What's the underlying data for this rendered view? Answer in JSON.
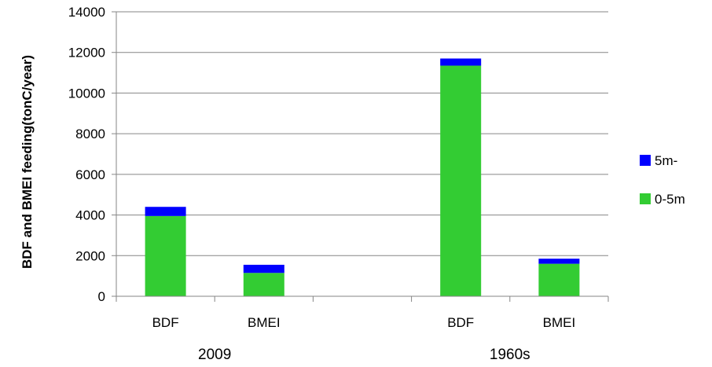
{
  "chart_data": {
    "type": "bar",
    "stacked": true,
    "groups": [
      {
        "label": "2009",
        "categories": [
          "BDF",
          "BMEI"
        ]
      },
      {
        "label": "1960s",
        "categories": [
          "BDF",
          "BMEI"
        ]
      }
    ],
    "categories": [
      "BDF",
      "BMEI",
      "BDF",
      "BMEI"
    ],
    "series": [
      {
        "name": "0-5m",
        "color": "#33CC33",
        "values": [
          3950,
          1150,
          11350,
          1600
        ]
      },
      {
        "name": "5m-",
        "color": "#0000FF",
        "values": [
          450,
          400,
          350,
          250
        ]
      }
    ],
    "title": "",
    "xlabel": "",
    "ylabel": "BDF and BMEI feeding(tonC/year)",
    "ylim": [
      0,
      14000
    ],
    "yticks": [
      0,
      2000,
      4000,
      6000,
      8000,
      10000,
      12000,
      14000
    ],
    "grid": "horizontal",
    "legend_position": "right",
    "legend_order": [
      "5m-",
      "0-5m"
    ]
  }
}
